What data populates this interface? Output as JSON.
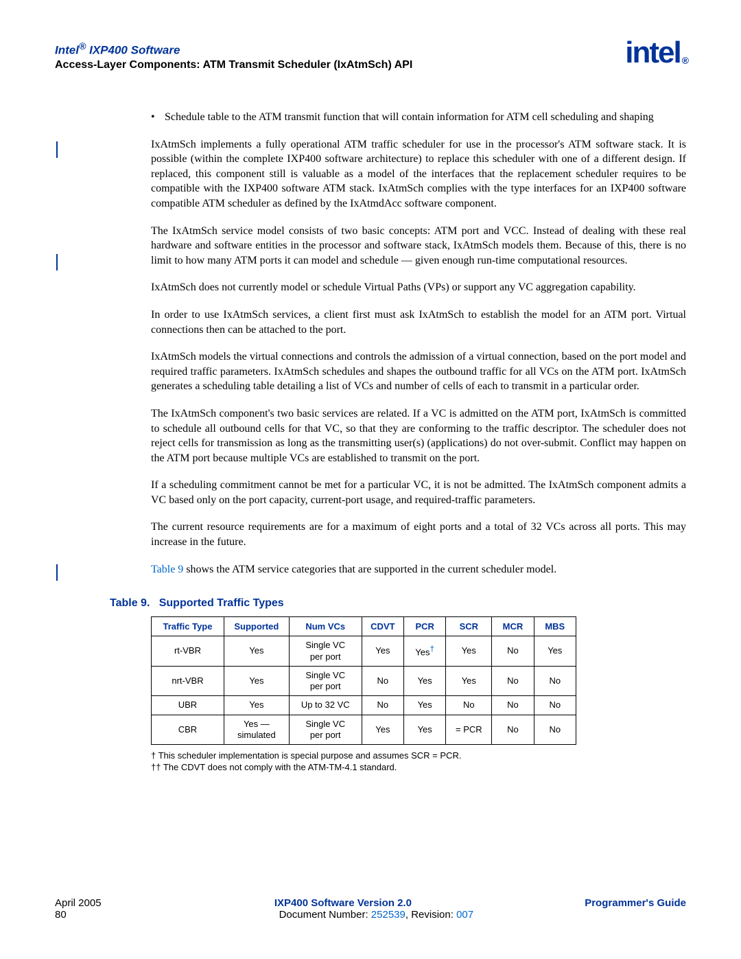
{
  "header": {
    "line1_prefix": "Intel",
    "line1_suffix": " IXP400 Software",
    "line2": "Access-Layer Components: ATM Transmit Scheduler (IxAtmSch) API",
    "logo_text": "intel",
    "logo_reg": "®"
  },
  "bullet": "Schedule table to the ATM transmit function that will contain information for ATM cell scheduling and shaping",
  "paras": [
    "IxAtmSch implements a fully operational ATM traffic scheduler for use in the processor's ATM software stack. It is possible (within the complete IXP400 software architecture) to replace this scheduler with one of a different design. If replaced, this component still is valuable as a model of the interfaces that the replacement scheduler requires to be compatible with the IXP400 software ATM stack. IxAtmSch complies with the type interfaces for an IXP400 software compatible ATM scheduler as defined by the IxAtmdAcc software component.",
    "The IxAtmSch service model consists of two basic concepts: ATM port and VCC. Instead of dealing with these real hardware and software entities in the processor and software stack, IxAtmSch models them. Because of this, there is no limit to how many ATM ports it can model and schedule — given enough run-time computational resources.",
    "IxAtmSch does not currently model or schedule Virtual Paths (VPs) or support any VC aggregation capability.",
    "In order to use IxAtmSch services, a client first must ask IxAtmSch to establish the model for an ATM port. Virtual connections then can be attached to the port.",
    "IxAtmSch models the virtual connections and controls the admission of a virtual connection, based on the port model and required traffic parameters. IxAtmSch schedules and shapes the outbound traffic for all VCs on the ATM port. IxAtmSch generates a scheduling table detailing a list of VCs and number of cells of each to transmit in a particular order.",
    "The IxAtmSch component's two basic services are related. If a VC is admitted on the ATM port, IxAtmSch is committed to schedule all outbound cells for that VC, so that they are conforming to the traffic descriptor. The scheduler does not reject cells for transmission as long as the transmitting user(s) (applications) do not over-submit. Conflict may happen on the ATM port because multiple VCs are established to transmit on the port.",
    "If a scheduling commitment cannot be met for a particular VC, it is not be admitted. The IxAtmSch component admits a VC based only on the port capacity, current-port usage, and required-traffic parameters.",
    "The current resource requirements are for a maximum of eight ports and a total of 32 VCs across all ports. This may increase in the future."
  ],
  "crossref_prefix": "Table 9",
  "crossref_suffix": " shows the ATM service categories that are supported in the current scheduler model.",
  "table": {
    "caption_prefix": "Table 9.",
    "caption_title": "Supported Traffic Types",
    "headers": [
      "Traffic Type",
      "Supported",
      "Num VCs",
      "CDVT",
      "PCR",
      "SCR",
      "MCR",
      "MBS"
    ],
    "rows": [
      [
        "rt-VBR",
        "Yes",
        "Single VC per port",
        "Yes",
        "Yes†",
        "Yes",
        "No",
        "Yes"
      ],
      [
        "nrt-VBR",
        "Yes",
        "Single VC per port",
        "No",
        "Yes",
        "Yes",
        "No",
        "No"
      ],
      [
        "UBR",
        "Yes",
        "Up to 32 VC",
        "No",
        "Yes",
        "No",
        "No",
        "No"
      ],
      [
        "CBR",
        "Yes — simulated",
        "Single VC per port",
        "Yes",
        "Yes",
        "= PCR",
        "No",
        "No"
      ]
    ],
    "col_widths": [
      "95px",
      "85px",
      "95px",
      "55px",
      "55px",
      "60px",
      "55px",
      "55px"
    ]
  },
  "footnotes": [
    "†   This scheduler implementation is special purpose and assumes SCR = PCR.",
    "†† The CDVT does not comply with the ATM-TM-4.1 standard."
  ],
  "footer": {
    "left1": "April 2005",
    "left2": "80",
    "center_title": "IXP400 Software Version 2.0",
    "doc_prefix": "Document Number: ",
    "doc_num": "252539",
    "rev_prefix": ", Revision: ",
    "rev_num": "007",
    "right": "Programmer's Guide"
  },
  "colors": {
    "brand": "#003399",
    "link": "#0066cc",
    "text": "#000000",
    "bg": "#ffffff"
  }
}
